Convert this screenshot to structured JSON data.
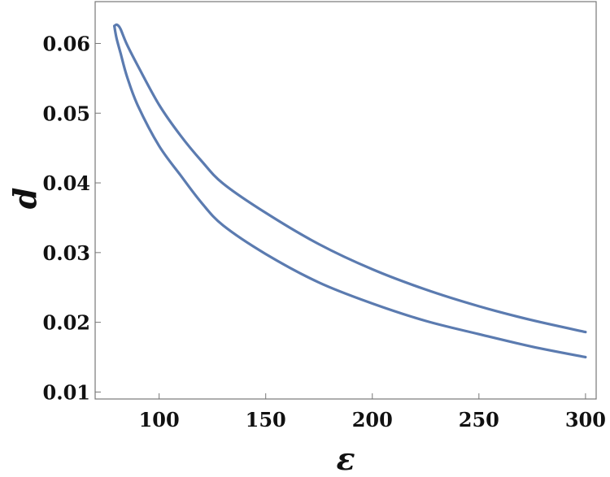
{
  "chart_data": {
    "type": "line",
    "title": "",
    "xlabel": "ε",
    "ylabel": "d",
    "xlim": [
      70,
      305
    ],
    "ylim": [
      0.009,
      0.066
    ],
    "x_ticks": [
      100,
      150,
      200,
      250,
      300
    ],
    "y_ticks": [
      0.01,
      0.02,
      0.03,
      0.04,
      0.05,
      0.06
    ],
    "x_tick_labels": [
      "100",
      "150",
      "200",
      "250",
      "300"
    ],
    "y_tick_labels": [
      "0.01",
      "0.02",
      "0.03",
      "0.04",
      "0.05",
      "0.06"
    ],
    "grid": false,
    "legend": "none",
    "line_color": "#5b7bb0",
    "series": [
      {
        "x": [
          79,
          80,
          81,
          82,
          85,
          90,
          100,
          110,
          120,
          130,
          150,
          175,
          200,
          225,
          250,
          275,
          300
        ],
        "y": [
          0.0625,
          0.0627,
          0.0625,
          0.062,
          0.0598,
          0.0568,
          0.0512,
          0.0468,
          0.0431,
          0.0399,
          0.0357,
          0.0312,
          0.0276,
          0.0247,
          0.0223,
          0.0203,
          0.0186
        ]
      },
      {
        "x": [
          79,
          80,
          82,
          85,
          90,
          100,
          110,
          120,
          130,
          150,
          175,
          200,
          225,
          250,
          275,
          300
        ],
        "y": [
          0.0625,
          0.0608,
          0.0585,
          0.0552,
          0.0511,
          0.0453,
          0.0411,
          0.0371,
          0.0339,
          0.0298,
          0.0257,
          0.0227,
          0.0202,
          0.0183,
          0.0165,
          0.015
        ]
      }
    ]
  }
}
